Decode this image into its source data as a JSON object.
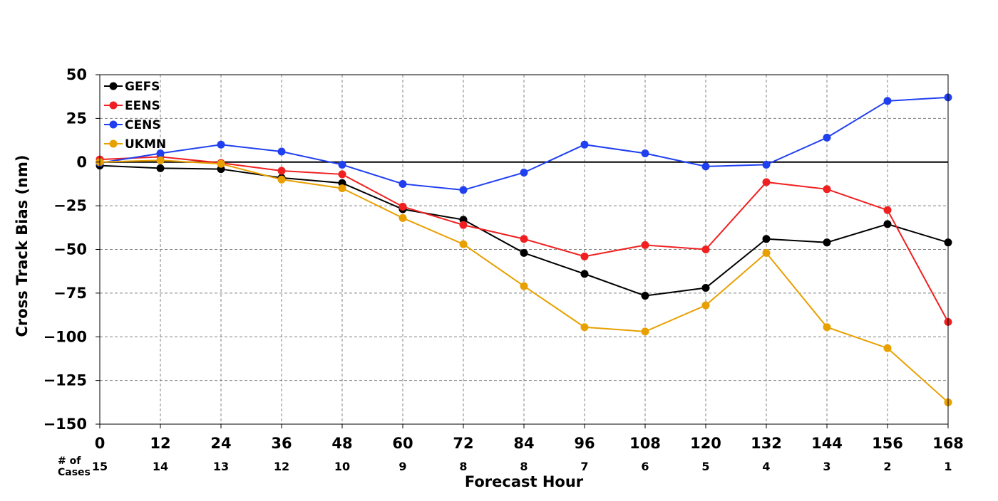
{
  "chart_data": {
    "type": "line",
    "title": "",
    "xlabel": "Forecast Hour",
    "ylabel": "Cross Track Bias (nm)",
    "x": [
      0,
      12,
      24,
      36,
      48,
      60,
      72,
      84,
      96,
      108,
      120,
      132,
      144,
      156,
      168
    ],
    "x_tick_labels": [
      "0",
      "12",
      "24",
      "36",
      "48",
      "60",
      "72",
      "84",
      "96",
      "108",
      "120",
      "132",
      "144",
      "156",
      "168"
    ],
    "xlim": [
      0,
      168
    ],
    "ylim": [
      -150,
      50
    ],
    "y_ticks": [
      50,
      25,
      0,
      -25,
      -50,
      -75,
      -100,
      -125,
      -150
    ],
    "y_tick_labels": [
      "50",
      "25",
      "0",
      "−25",
      "−50",
      "−75",
      "−100",
      "−125",
      "−150"
    ],
    "grid": true,
    "legend_position": "top-left",
    "zero_line": true,
    "cases_label": "# of\nCases",
    "cases_label_line1": "# of",
    "cases_label_line2": "Cases",
    "cases": [
      "15",
      "14",
      "13",
      "12",
      "10",
      "9",
      "8",
      "8",
      "7",
      "6",
      "5",
      "4",
      "3",
      "2",
      "1"
    ],
    "series": [
      {
        "name": "GEFS",
        "color": "#000000",
        "values": [
          -2,
          -3.5,
          -4,
          -9,
          -12,
          -27,
          -33,
          -52,
          -64,
          -76.5,
          -72,
          -44,
          -46,
          -35.5,
          -46
        ]
      },
      {
        "name": "EENS",
        "color": "#f02020",
        "values": [
          1.5,
          3,
          -0.5,
          -5,
          -7,
          -25.5,
          -36,
          -44,
          -54,
          -47.5,
          -50,
          -11.5,
          -15.5,
          -27.5,
          -91.5
        ]
      },
      {
        "name": "CENS",
        "color": "#2040f0",
        "values": [
          -0.5,
          5,
          10,
          6,
          -1.5,
          -12.5,
          -16,
          -6,
          10,
          5,
          -2.5,
          -1.5,
          14,
          35,
          37
        ]
      },
      {
        "name": "UKMN",
        "color": "#e8a000",
        "values": [
          0,
          1,
          -1,
          -10,
          -15,
          -32,
          -47,
          -71,
          -94.5,
          -97,
          -82,
          -52,
          -94.5,
          -106.5,
          -137.5
        ]
      }
    ]
  }
}
